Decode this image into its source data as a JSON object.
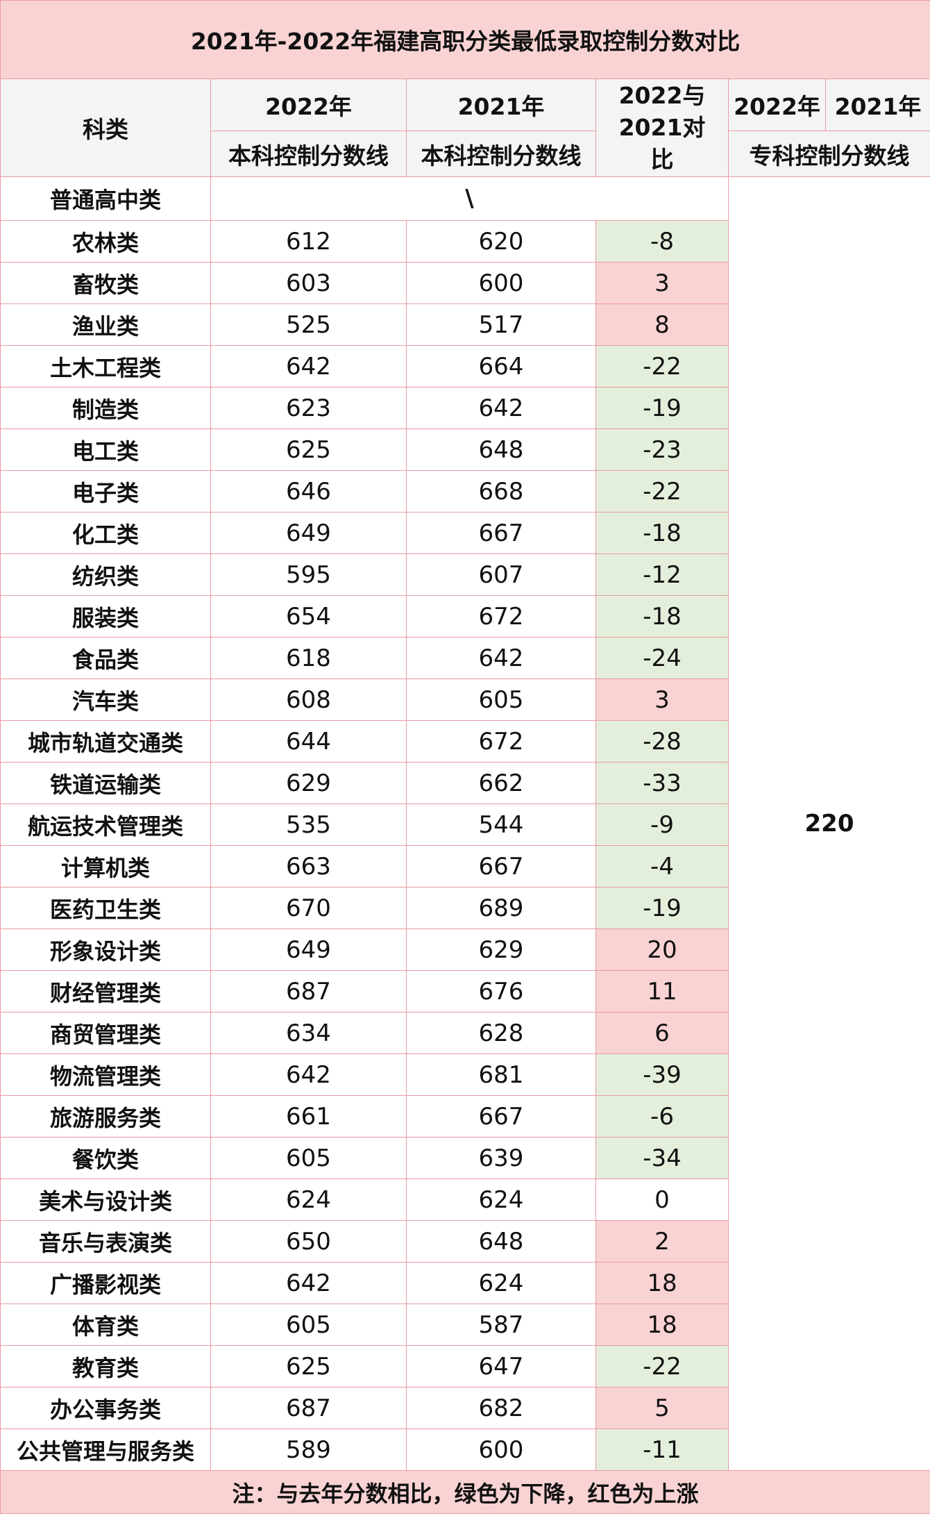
{
  "title": "2021年-2022年福建高职分类最低录取控制分数对比",
  "headers": {
    "category": "科类",
    "year_2022": "2022年",
    "year_2021": "2021年",
    "compare": "2022与2021对比",
    "bk_line_2022": "本科控制分数线",
    "bk_line_2021": "本科控制分数线",
    "zk_2022": "2022年",
    "zk_2021": "2021年",
    "zk_line": "专科控制分数线"
  },
  "general_row": {
    "name": "普通高中类",
    "value": "\\"
  },
  "zk_value": "220",
  "rows": [
    {
      "name": "农林类",
      "v2022": "612",
      "v2021": "620",
      "diff": "-8",
      "trend": "down"
    },
    {
      "name": "畜牧类",
      "v2022": "603",
      "v2021": "600",
      "diff": "3",
      "trend": "up"
    },
    {
      "name": "渔业类",
      "v2022": "525",
      "v2021": "517",
      "diff": "8",
      "trend": "up"
    },
    {
      "name": "土木工程类",
      "v2022": "642",
      "v2021": "664",
      "diff": "-22",
      "trend": "down"
    },
    {
      "name": "制造类",
      "v2022": "623",
      "v2021": "642",
      "diff": "-19",
      "trend": "down"
    },
    {
      "name": "电工类",
      "v2022": "625",
      "v2021": "648",
      "diff": "-23",
      "trend": "down"
    },
    {
      "name": "电子类",
      "v2022": "646",
      "v2021": "668",
      "diff": "-22",
      "trend": "down"
    },
    {
      "name": "化工类",
      "v2022": "649",
      "v2021": "667",
      "diff": "-18",
      "trend": "down"
    },
    {
      "name": "纺织类",
      "v2022": "595",
      "v2021": "607",
      "diff": "-12",
      "trend": "down"
    },
    {
      "name": "服装类",
      "v2022": "654",
      "v2021": "672",
      "diff": "-18",
      "trend": "down"
    },
    {
      "name": "食品类",
      "v2022": "618",
      "v2021": "642",
      "diff": "-24",
      "trend": "down"
    },
    {
      "name": "汽车类",
      "v2022": "608",
      "v2021": "605",
      "diff": "3",
      "trend": "up"
    },
    {
      "name": "城市轨道交通类",
      "v2022": "644",
      "v2021": "672",
      "diff": "-28",
      "trend": "down"
    },
    {
      "name": "铁道运输类",
      "v2022": "629",
      "v2021": "662",
      "diff": "-33",
      "trend": "down"
    },
    {
      "name": "航运技术管理类",
      "v2022": "535",
      "v2021": "544",
      "diff": "-9",
      "trend": "down"
    },
    {
      "name": "计算机类",
      "v2022": "663",
      "v2021": "667",
      "diff": "-4",
      "trend": "down"
    },
    {
      "name": "医药卫生类",
      "v2022": "670",
      "v2021": "689",
      "diff": "-19",
      "trend": "down"
    },
    {
      "name": "形象设计类",
      "v2022": "649",
      "v2021": "629",
      "diff": "20",
      "trend": "up"
    },
    {
      "name": "财经管理类",
      "v2022": "687",
      "v2021": "676",
      "diff": "11",
      "trend": "up"
    },
    {
      "name": "商贸管理类",
      "v2022": "634",
      "v2021": "628",
      "diff": "6",
      "trend": "up"
    },
    {
      "name": "物流管理类",
      "v2022": "642",
      "v2021": "681",
      "diff": "-39",
      "trend": "down"
    },
    {
      "name": "旅游服务类",
      "v2022": "661",
      "v2021": "667",
      "diff": "-6",
      "trend": "down"
    },
    {
      "name": "餐饮类",
      "v2022": "605",
      "v2021": "639",
      "diff": "-34",
      "trend": "down"
    },
    {
      "name": "美术与设计类",
      "v2022": "624",
      "v2021": "624",
      "diff": "0",
      "trend": "same"
    },
    {
      "name": "音乐与表演类",
      "v2022": "650",
      "v2021": "648",
      "diff": "2",
      "trend": "up"
    },
    {
      "name": "广播影视类",
      "v2022": "642",
      "v2021": "624",
      "diff": "18",
      "trend": "up"
    },
    {
      "name": "体育类",
      "v2022": "605",
      "v2021": "587",
      "diff": "18",
      "trend": "up"
    },
    {
      "name": "教育类",
      "v2022": "625",
      "v2021": "647",
      "diff": "-22",
      "trend": "down"
    },
    {
      "name": "办公事务类",
      "v2022": "687",
      "v2021": "682",
      "diff": "5",
      "trend": "up"
    },
    {
      "name": "公共管理与服务类",
      "v2022": "589",
      "v2021": "600",
      "diff": "-11",
      "trend": "down"
    }
  ],
  "note": "注：与去年分数相比，绿色为下降，红色为上涨"
}
